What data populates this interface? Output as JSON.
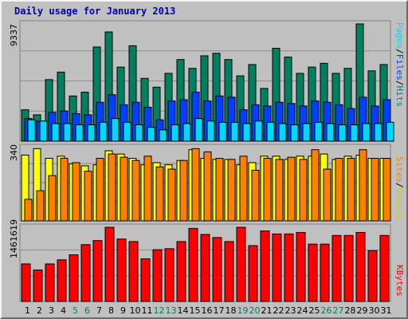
{
  "title": "Daily usage for January 2013",
  "chart_data": {
    "type": "bar",
    "title": "Daily usage for January 2013",
    "categories": [
      "1",
      "2",
      "3",
      "4",
      "5",
      "6",
      "7",
      "8",
      "9",
      "10",
      "11",
      "12",
      "13",
      "14",
      "15",
      "16",
      "17",
      "18",
      "19",
      "20",
      "21",
      "22",
      "23",
      "24",
      "25",
      "26",
      "27",
      "28",
      "29",
      "30",
      "31"
    ],
    "weekend_days": [
      "5",
      "6",
      "12",
      "13",
      "19",
      "20",
      "26",
      "27"
    ],
    "panels": [
      {
        "name": "hits_files_pages",
        "ymax_label": "9337",
        "ymax": 9337,
        "legend": [
          "Pages",
          "/",
          "Files",
          "/",
          "Hits"
        ],
        "legend_colors": [
          "#00e0ff",
          "#000000",
          "#0040ff",
          "#000000",
          "#008080"
        ],
        "series": [
          {
            "name": "Hits",
            "color": "#008060",
            "values": [
              2500,
              2100,
              4900,
              5500,
              3600,
              3900,
              7500,
              8700,
              5900,
              7600,
              5000,
              4300,
              5400,
              6500,
              5800,
              6800,
              7000,
              6500,
              5200,
              6100,
              4200,
              7400,
              6700,
              5400,
              5900,
              6200,
              5400,
              5800,
              9337,
              5600,
              6100
            ]
          },
          {
            "name": "Files",
            "color": "#0040ff",
            "values": [
              1800,
              1600,
              2300,
              2400,
              2200,
              2100,
              3100,
              3700,
              2900,
              3100,
              2700,
              1700,
              3200,
              3300,
              3900,
              3200,
              3600,
              3500,
              2500,
              2900,
              2800,
              3100,
              3000,
              2800,
              3200,
              3100,
              2900,
              2600,
              3500,
              2800,
              3300
            ]
          },
          {
            "name": "Pages",
            "color": "#00d8ff",
            "values": [
              1700,
              1600,
              1400,
              1400,
              1300,
              1300,
              1500,
              1800,
              1500,
              1300,
              1100,
              900,
              1300,
              1400,
              1800,
              1600,
              1500,
              1500,
              1400,
              1600,
              1500,
              1400,
              1300,
              1400,
              1500,
              1400,
              1300,
              1300,
              1400,
              1400,
              1500
            ]
          }
        ]
      },
      {
        "name": "visits_sites",
        "ymax_label": "340",
        "ymax": 340,
        "legend": [
          "Sites",
          "/",
          "Visits"
        ],
        "legend_colors": [
          "#ff8000",
          "#000000",
          "#ffff00"
        ],
        "series": [
          {
            "name": "Visits",
            "color": "#ffff00",
            "values": [
              305,
              335,
              290,
              300,
              265,
              255,
              260,
              325,
              310,
              290,
              260,
              270,
              260,
              280,
              330,
              290,
              285,
              285,
              260,
              270,
              300,
              300,
              285,
              300,
              300,
              310,
              285,
              300,
              305,
              290,
              290
            ]
          },
          {
            "name": "Sites",
            "color": "#ff8000",
            "values": [
              100,
              140,
              210,
              290,
              270,
              230,
              290,
              310,
              295,
              280,
              300,
              250,
              240,
              280,
              335,
              320,
              290,
              285,
              300,
              235,
              290,
              285,
              295,
              285,
              330,
              240,
              290,
              290,
              330,
              290,
              290
            ]
          }
        ]
      },
      {
        "name": "kbytes",
        "ymax_label": "1461619",
        "ymax": 1461619,
        "legend": [
          "KBytes"
        ],
        "legend_colors": [
          "#ff0000"
        ],
        "series": [
          {
            "name": "KBytes",
            "color": "#ff0000",
            "values": [
              740000,
              620000,
              740000,
              820000,
              920000,
              1120000,
              1200000,
              1461619,
              1230000,
              1180000,
              840000,
              1020000,
              1040000,
              1180000,
              1440000,
              1320000,
              1260000,
              1180000,
              1461619,
              1100000,
              1390000,
              1330000,
              1330000,
              1360000,
              1130000,
              1130000,
              1300000,
              1300000,
              1360000,
              1000000,
              1300000
            ]
          }
        ]
      }
    ]
  }
}
